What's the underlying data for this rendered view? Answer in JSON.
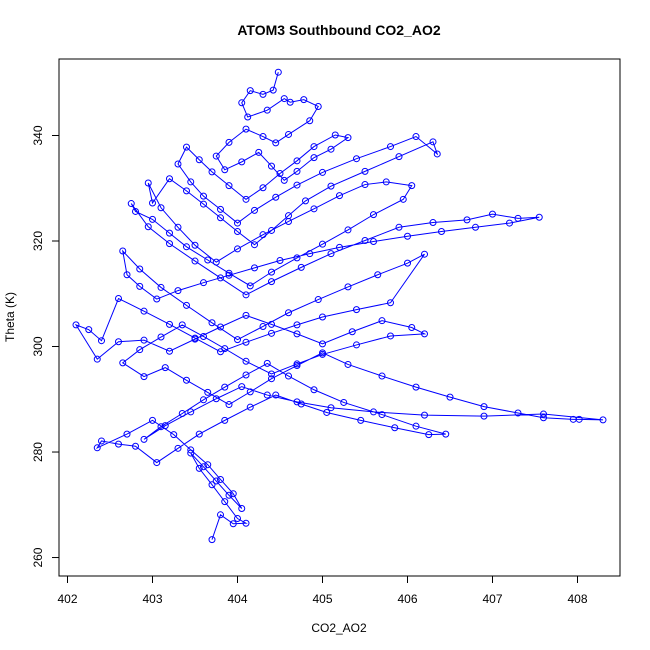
{
  "chart_data": {
    "type": "line",
    "title": "ATOM3 Southbound CO2_AO2",
    "xlabel": "CO2_AO2",
    "ylabel": "Theta (K)",
    "xlim": [
      401.9,
      408.5
    ],
    "ylim": [
      256.5,
      354.5
    ],
    "xticks": [
      402,
      403,
      404,
      405,
      406,
      407,
      408
    ],
    "yticks": [
      260,
      280,
      300,
      320,
      340
    ],
    "grid": false,
    "legend": "none",
    "color": "#0000ff",
    "series": [
      {
        "x": [
          404.48,
          404.42,
          404.3,
          404.15,
          404.05,
          404.12,
          404.35,
          404.55,
          404.62,
          404.78,
          404.95,
          404.85,
          404.6,
          404.45,
          404.3,
          404.1,
          403.9,
          403.75,
          403.85,
          404.05,
          404.25,
          404.4,
          404.55,
          404.7,
          404.9,
          405.1,
          405.3,
          405.15,
          404.9,
          404.7,
          404.5,
          404.3,
          404.1,
          403.9,
          403.7,
          403.55,
          403.4,
          403.3,
          403.45,
          403.6,
          403.8,
          404.0,
          404.2,
          404.45,
          404.7,
          405.0,
          405.4,
          405.8,
          406.1,
          406.35,
          406.3,
          405.9,
          405.5,
          405.1,
          404.8,
          404.6,
          404.4,
          404.2,
          404.0,
          403.8,
          403.6,
          403.4,
          403.2,
          403.0,
          402.95,
          403.1,
          403.3,
          403.5,
          403.75,
          404.0,
          404.3,
          404.6,
          404.9,
          405.2,
          405.5,
          405.75,
          406.05,
          405.95,
          405.6,
          405.3,
          405.0,
          404.7,
          404.4,
          404.15,
          403.9,
          403.65,
          403.4,
          403.2,
          403.0,
          402.8,
          402.75,
          402.95,
          403.2,
          403.5,
          403.8,
          404.1,
          404.4,
          404.75,
          405.1,
          405.5,
          405.9,
          406.3,
          406.7,
          407.0,
          407.3,
          407.55,
          407.2,
          406.8,
          406.4,
          406.0,
          405.6,
          405.2,
          404.85,
          404.5,
          404.2,
          403.9,
          403.6,
          403.3,
          403.05,
          402.85,
          402.7,
          402.65,
          402.85,
          403.1,
          403.4,
          403.7,
          404.0,
          404.3,
          404.6,
          404.95,
          405.3,
          405.65,
          406.0,
          406.2,
          405.8,
          405.4,
          405.0,
          404.7,
          404.4,
          404.1,
          403.8,
          403.5,
          403.2,
          402.9,
          402.6,
          402.4,
          402.25,
          402.1,
          402.35,
          402.6,
          402.9,
          403.2,
          403.5,
          403.8,
          404.1,
          404.4,
          404.7,
          405.0,
          405.35,
          405.7,
          406.05,
          406.2,
          405.8,
          405.4,
          405.0,
          404.7,
          404.4,
          404.1,
          403.85,
          403.6,
          403.35,
          403.1,
          402.85,
          402.65,
          402.9,
          403.15,
          403.4,
          403.65,
          403.9,
          404.15,
          404.4,
          404.7,
          405.0,
          405.3,
          405.7,
          406.1,
          406.5,
          406.9,
          407.3,
          407.6,
          407.95,
          408.02,
          408.3,
          407.6,
          406.9,
          406.2,
          405.6,
          405.1,
          404.7,
          404.35,
          404.05,
          403.75,
          403.45,
          403.15,
          402.9,
          403.1,
          403.35,
          403.6,
          403.85,
          404.1,
          404.35,
          404.6,
          404.9,
          405.25,
          405.7,
          406.1,
          406.45,
          406.25,
          405.85,
          405.45,
          405.05,
          404.75,
          404.45,
          404.15,
          403.85,
          403.55,
          403.3,
          403.05,
          402.8,
          402.6,
          402.4,
          402.35,
          402.7,
          403.0,
          403.25,
          403.45,
          403.65,
          403.8,
          403.95,
          404.05,
          403.9,
          403.75,
          403.6,
          403.45,
          403.55,
          403.7,
          403.85,
          404.0,
          404.1,
          403.95,
          403.8,
          403.7
        ],
        "y": [
          352.0,
          348.6,
          347.8,
          348.5,
          346.2,
          343.5,
          344.8,
          347.0,
          346.3,
          346.8,
          345.5,
          342.8,
          340.2,
          338.6,
          339.8,
          341.2,
          338.7,
          336.1,
          333.5,
          335.0,
          336.8,
          334.2,
          331.5,
          333.2,
          335.8,
          337.4,
          339.6,
          340.1,
          337.9,
          335.2,
          332.8,
          330.1,
          327.9,
          330.5,
          333.1,
          335.4,
          337.8,
          334.6,
          331.2,
          328.5,
          326.0,
          323.4,
          325.8,
          328.3,
          330.6,
          333.0,
          335.6,
          337.9,
          339.8,
          336.5,
          338.8,
          336.0,
          333.2,
          330.4,
          327.6,
          324.8,
          322.0,
          319.3,
          321.8,
          324.4,
          327.0,
          329.5,
          331.8,
          327.2,
          331.0,
          326.3,
          322.6,
          319.2,
          316.0,
          318.5,
          321.2,
          323.7,
          326.1,
          328.6,
          330.7,
          331.2,
          330.5,
          327.9,
          325.0,
          322.1,
          319.4,
          316.8,
          314.1,
          311.5,
          313.9,
          316.4,
          318.9,
          321.5,
          324.1,
          325.6,
          327.1,
          322.7,
          319.5,
          316.2,
          313.0,
          309.8,
          312.3,
          315.0,
          317.6,
          320.1,
          322.6,
          323.5,
          324.0,
          325.1,
          324.3,
          324.5,
          323.4,
          322.6,
          321.8,
          320.9,
          319.9,
          318.8,
          317.6,
          316.3,
          314.9,
          313.5,
          312.1,
          310.6,
          309.0,
          311.4,
          313.6,
          318.1,
          314.7,
          311.2,
          307.8,
          304.5,
          301.3,
          303.8,
          306.4,
          308.9,
          311.3,
          313.6,
          315.8,
          317.5,
          308.3,
          307.0,
          305.6,
          304.1,
          302.5,
          300.8,
          299.0,
          301.6,
          304.2,
          306.7,
          309.1,
          301.1,
          303.2,
          304.1,
          297.6,
          300.9,
          301.2,
          299.1,
          301.4,
          303.7,
          305.9,
          304.2,
          302.4,
          300.5,
          302.8,
          304.9,
          303.6,
          302.4,
          302.0,
          300.3,
          298.5,
          296.7,
          294.8,
          297.2,
          299.6,
          301.9,
          304.1,
          301.8,
          299.4,
          296.9,
          294.3,
          296.0,
          293.6,
          291.3,
          289.0,
          291.4,
          293.9,
          296.4,
          298.8,
          296.6,
          294.4,
          292.3,
          290.4,
          288.6,
          287.4,
          286.5,
          286.2,
          286.2,
          286.1,
          287.2,
          286.8,
          287.0,
          287.6,
          288.4,
          289.5,
          290.8,
          292.4,
          290.1,
          287.6,
          285.0,
          282.4,
          284.8,
          287.3,
          289.9,
          292.3,
          294.6,
          296.8,
          294.4,
          291.8,
          289.4,
          287.1,
          284.9,
          283.4,
          283.3,
          284.6,
          286.0,
          287.5,
          289.1,
          290.8,
          288.5,
          286.0,
          283.4,
          280.7,
          278.0,
          281.1,
          281.5,
          282.1,
          280.8,
          283.4,
          286.0,
          283.3,
          280.4,
          277.6,
          274.8,
          272.1,
          269.3,
          271.8,
          274.5,
          277.2,
          279.8,
          276.9,
          273.8,
          270.6,
          267.4,
          266.5,
          266.4,
          268.1,
          263.4
        ]
      }
    ]
  }
}
